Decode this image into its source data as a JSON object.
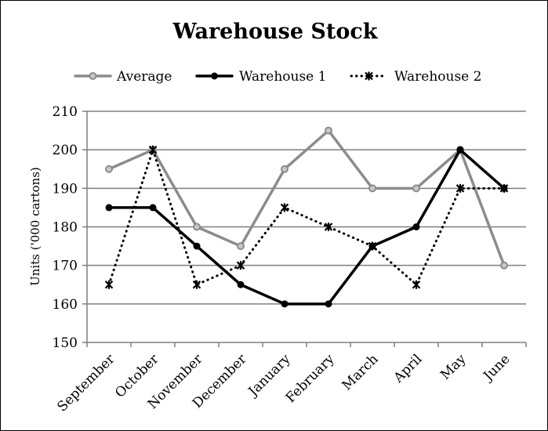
{
  "chart_data": {
    "type": "line",
    "title": "Warehouse Stock",
    "xlabel": "",
    "ylabel": "Units ('000 cartons)",
    "ylim": [
      150,
      210
    ],
    "yticks": [
      150,
      160,
      170,
      180,
      190,
      200,
      210
    ],
    "grid": true,
    "legend_position": "top",
    "categories": [
      "September",
      "October",
      "November",
      "December",
      "January",
      "February",
      "March",
      "April",
      "May",
      "June"
    ],
    "series": [
      {
        "name": "Average",
        "values": [
          195,
          200,
          180,
          175,
          195,
          205,
          190,
          190,
          200,
          170
        ],
        "color": "#8c8c8c",
        "line_style": "solid",
        "marker": "circle-open"
      },
      {
        "name": "Warehouse 1",
        "values": [
          185,
          185,
          175,
          165,
          160,
          160,
          175,
          180,
          200,
          190
        ],
        "color": "#000000",
        "line_style": "solid",
        "marker": "circle"
      },
      {
        "name": "Warehouse 2",
        "values": [
          165,
          200,
          165,
          170,
          185,
          180,
          175,
          165,
          190,
          190
        ],
        "color": "#000000",
        "line_style": "dotted",
        "marker": "star"
      }
    ]
  }
}
